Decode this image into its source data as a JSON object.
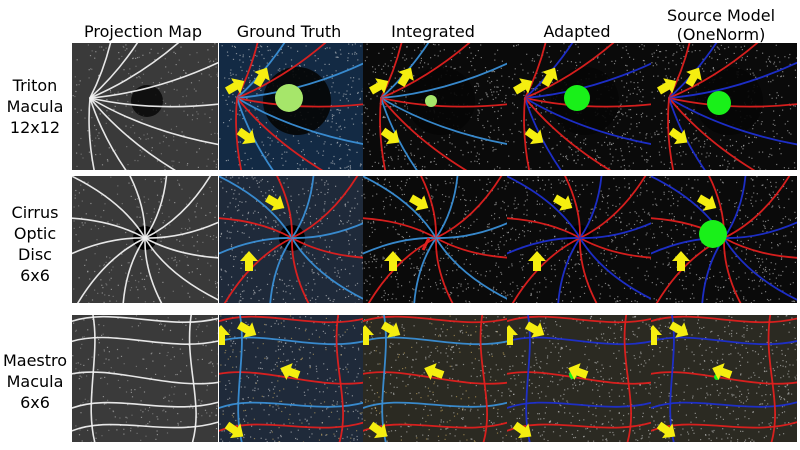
{
  "columns": [
    {
      "key": "projection",
      "label": "Projection Map"
    },
    {
      "key": "ground_truth",
      "label": "Ground Truth"
    },
    {
      "key": "integrated",
      "label": "Integrated"
    },
    {
      "key": "adapted",
      "label": "Adapted"
    },
    {
      "key": "source_model",
      "label": "Source Model\n(OneNorm)"
    }
  ],
  "rows": [
    {
      "key": "triton",
      "label": "Triton\nMacula\n12x12"
    },
    {
      "key": "cirrus",
      "label": "Cirrus\nOptic\nDisc\n6x6"
    },
    {
      "key": "maestro",
      "label": "Maestro\nMacula\n6x6"
    }
  ],
  "colors": {
    "artery": "#e0201f",
    "vein_gt": "#3a8fd6",
    "vein_model": "#1d2fd0",
    "lesion_gt": "#a6e66a",
    "lesion_model": "#19f019",
    "arrow": "#f5ee10",
    "capillary": "#d8d8d8"
  }
}
